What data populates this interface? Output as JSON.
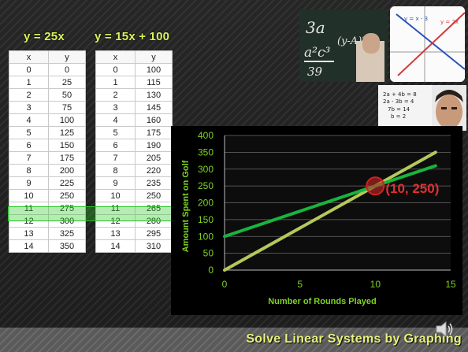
{
  "equations": {
    "left": "y = 25x",
    "right": "y = 15x + 100"
  },
  "table_headers": [
    "x",
    "y"
  ],
  "table_left": [
    [
      "0",
      "0"
    ],
    [
      "1",
      "25"
    ],
    [
      "2",
      "50"
    ],
    [
      "3",
      "75"
    ],
    [
      "4",
      "100"
    ],
    [
      "5",
      "125"
    ],
    [
      "6",
      "150"
    ],
    [
      "7",
      "175"
    ],
    [
      "8",
      "200"
    ],
    [
      "9",
      "225"
    ],
    [
      "10",
      "250"
    ],
    [
      "11",
      "275"
    ],
    [
      "12",
      "300"
    ],
    [
      "13",
      "325"
    ],
    [
      "14",
      "350"
    ]
  ],
  "table_right": [
    [
      "0",
      "100"
    ],
    [
      "1",
      "115"
    ],
    [
      "2",
      "130"
    ],
    [
      "3",
      "145"
    ],
    [
      "4",
      "160"
    ],
    [
      "5",
      "175"
    ],
    [
      "6",
      "190"
    ],
    [
      "7",
      "205"
    ],
    [
      "8",
      "220"
    ],
    [
      "9",
      "235"
    ],
    [
      "10",
      "250"
    ],
    [
      "11",
      "265"
    ],
    [
      "12",
      "280"
    ],
    [
      "13",
      "295"
    ],
    [
      "14",
      "310"
    ]
  ],
  "highlighted_row": 10,
  "slide_title": "Solve Linear Systems by Graphing",
  "photo_notes": {
    "top_left": [
      "3a",
      "a²c³",
      "39",
      "(y-A)²"
    ],
    "top_right": [
      "y = x - 3",
      "y = 2x"
    ],
    "bottom": [
      "2a + 4b = 8",
      "2a - 3b = 4",
      "7b = 14",
      "b = 2"
    ]
  },
  "chart_data": {
    "type": "line",
    "xlabel": "Number of Rounds Played",
    "ylabel": "Amount Spent on Golf",
    "xlim": [
      0,
      15
    ],
    "ylim": [
      0,
      400
    ],
    "x_ticks": [
      "0",
      "5",
      "10",
      "15"
    ],
    "y_ticks": [
      "0",
      "50",
      "100",
      "150",
      "200",
      "250",
      "300",
      "350",
      "400"
    ],
    "grid": true,
    "series": [
      {
        "equation": "y = 25x",
        "color": "#b5c85a",
        "x": [
          0,
          14
        ],
        "y": [
          0,
          350
        ]
      },
      {
        "equation": "y = 15x + 100",
        "color": "#19b43c",
        "x": [
          0,
          14
        ],
        "y": [
          100,
          310
        ]
      }
    ],
    "annotation": {
      "text": "(10, 250)",
      "x": 10,
      "y": 250,
      "color": "#e03030"
    }
  },
  "colors": {
    "equation_text": "#d9f25a",
    "title_text": "#e8f27a",
    "highlight": "#27c427"
  }
}
